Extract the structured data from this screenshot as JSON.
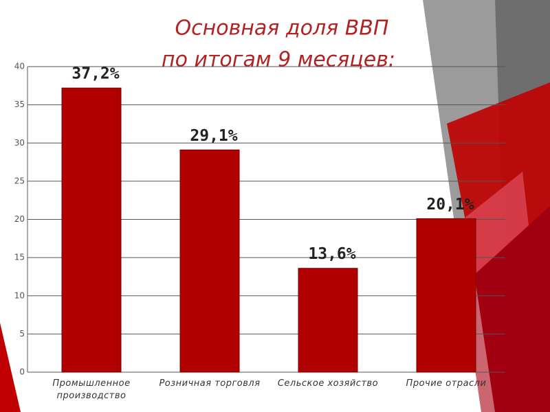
{
  "chart_data": {
    "type": "bar",
    "title": [
      "Основная доля  ВВП",
      "по итогам 9 месяцев:"
    ],
    "categories": [
      "Промышленное производство",
      "Розничная торговля",
      "Сельское хозяйство",
      "Прочие отрасли"
    ],
    "values": [
      37.2,
      29.1,
      13.6,
      20.1
    ],
    "value_labels": [
      "37,2%",
      "29,1%",
      "13,6%",
      "20,1%"
    ],
    "color": "#b00000",
    "ylim": [
      0,
      40
    ],
    "yticks": [
      0,
      5,
      10,
      15,
      20,
      25,
      30,
      35,
      40
    ],
    "grid": true
  }
}
